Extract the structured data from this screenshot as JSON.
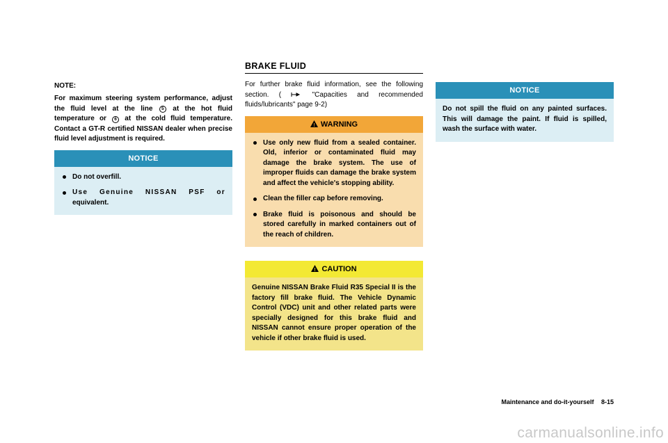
{
  "col1": {
    "noteLabel": "NOTE:",
    "noteBody": "For maximum steering system performance, adjust the fluid level at the line |5| at the hot fluid temperature or |6| at the cold fluid temperature. Contact a GT-R certified NISSAN dealer when precise fluid level adjustment is required.",
    "notice": {
      "header": "NOTICE",
      "bullets": [
        "Do not overfill.",
        "Use Genuine NISSAN PSF or equivalent."
      ]
    }
  },
  "col2": {
    "heading": "BRAKE FLUID",
    "intro": "For further brake fluid information, see the following section. ( |ref| \"Capacities and recommended fluids/lubricants\" page 9-2)",
    "warning": {
      "header": "WARNING",
      "bullets": [
        "Use only new fluid from a sealed container. Old, inferior or contaminated fluid may damage the brake system. The use of improper fluids can damage the brake system and affect the vehicle's stopping ability.",
        "Clean the filler cap before removing.",
        "Brake fluid is poisonous and should be stored carefully in marked containers out of the reach of children."
      ]
    },
    "caution": {
      "header": "CAUTION",
      "body": "Genuine NISSAN Brake Fluid R35 Special II is the factory fill brake fluid. The Vehicle Dynamic Control (VDC) unit and other related parts were specially designed for this brake fluid and NISSAN cannot ensure proper operation of the vehicle if other brake fluid is used."
    }
  },
  "col3": {
    "notice": {
      "header": "NOTICE",
      "body": "Do not spill the fluid on any painted surfaces. This will damage the paint. If fluid is spilled, wash the surface with water."
    }
  },
  "footer": {
    "section": "Maintenance and do-it-yourself",
    "page": "8-15"
  },
  "watermark": "carmanualsonline.info",
  "colors": {
    "noticeHeader": "#2a90b8",
    "noticeBody": "#dceef4",
    "warningHeader": "#f2a638",
    "warningBody": "#f9ddae",
    "cautionHeader": "#f3e933",
    "cautionBody": "#f3e48a"
  }
}
